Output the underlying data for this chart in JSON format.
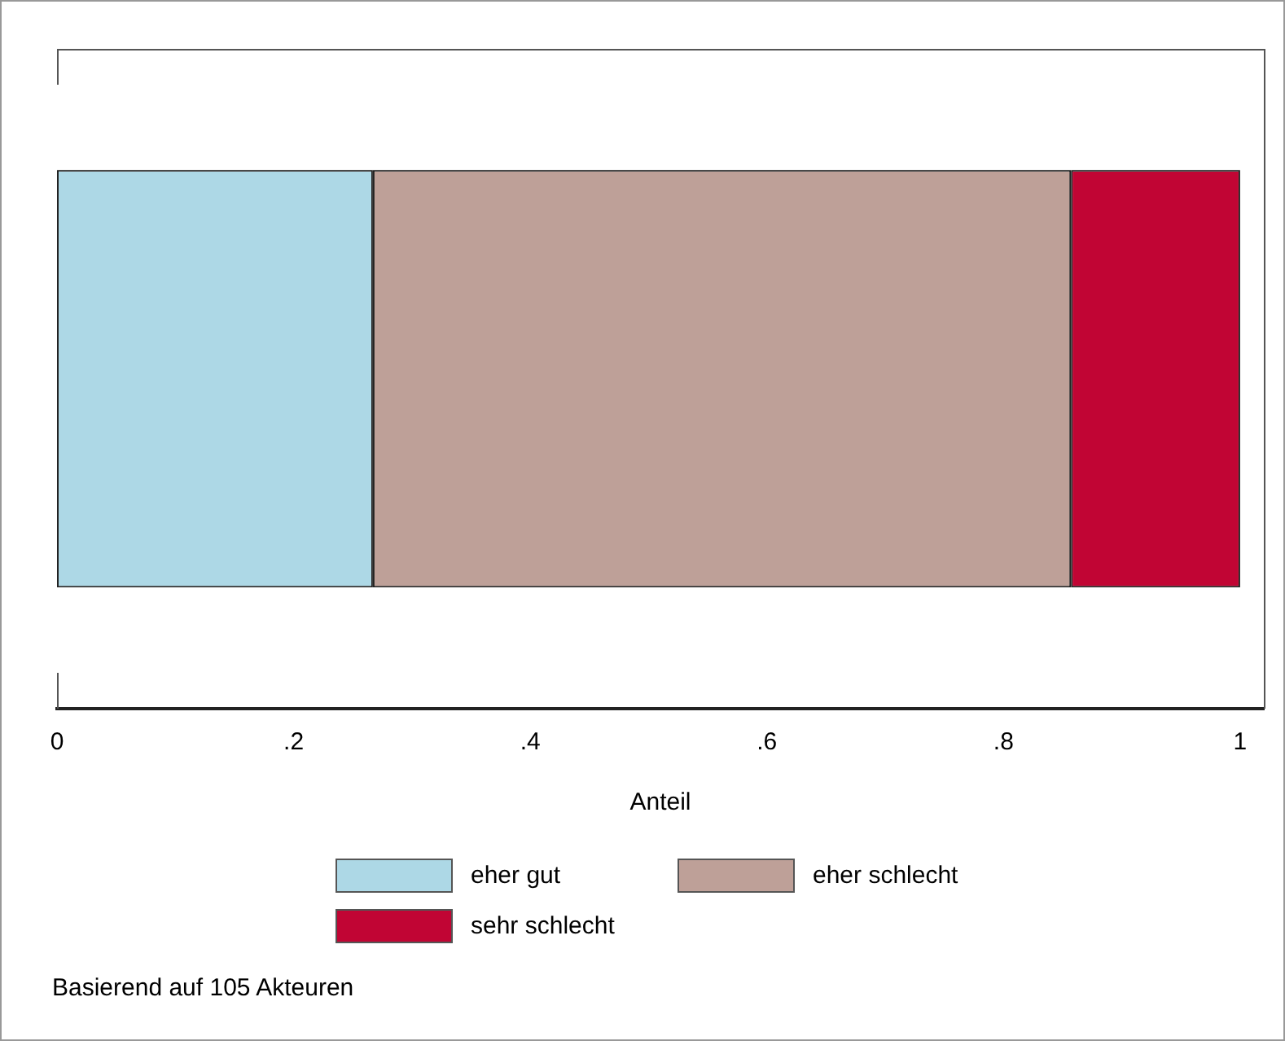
{
  "chart_data": {
    "type": "bar",
    "orientation": "horizontal",
    "stacked": true,
    "categories": [
      null
    ],
    "series": [
      {
        "name": "eher gut",
        "color": "#add8e6",
        "values": [
          0.267
        ]
      },
      {
        "name": "eher schlecht",
        "color": "#bea098",
        "values": [
          0.59
        ]
      },
      {
        "name": "sehr schlecht",
        "color": "#c10534",
        "values": [
          0.143
        ]
      }
    ],
    "xlim": [
      0,
      1.02
    ],
    "xticks": [
      0,
      {
        "value": 0.2,
        "label": ".2"
      },
      {
        "value": 0.4,
        "label": ".4"
      },
      {
        "value": 0.6,
        "label": ".6"
      },
      {
        "value": 0.8,
        "label": ".8"
      },
      1
    ],
    "xlabel": "Anteil",
    "grid": false,
    "legend": "bottom",
    "annotations": [
      "Basierend auf 105 Akteuren"
    ]
  }
}
